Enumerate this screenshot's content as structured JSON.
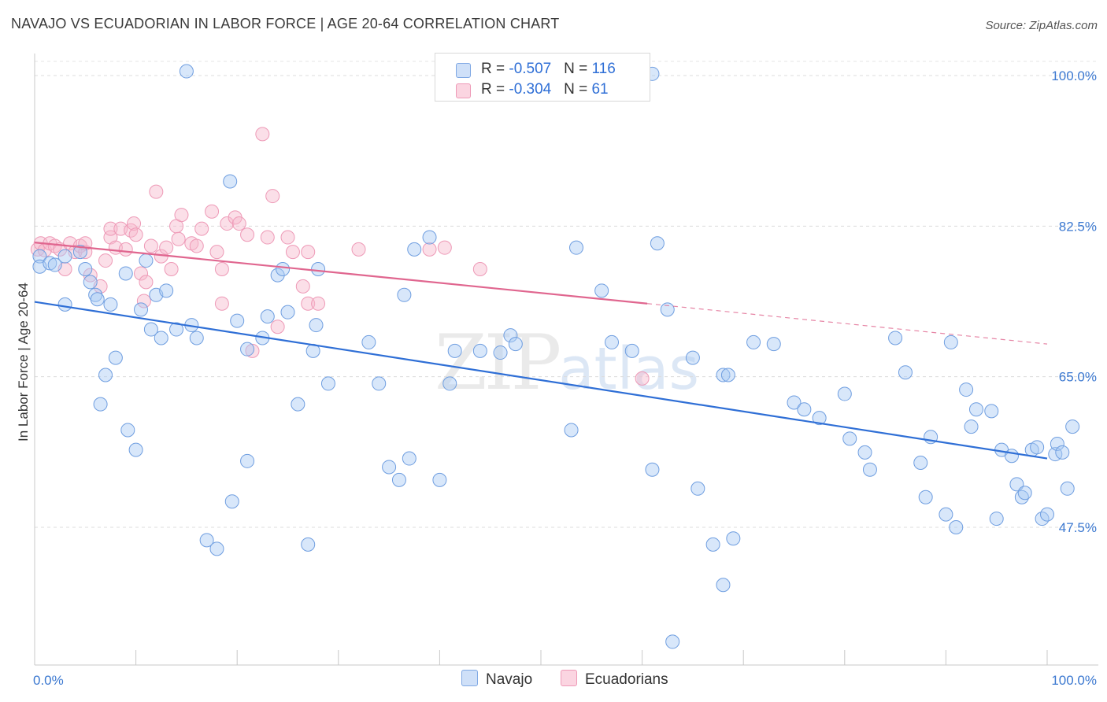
{
  "header": {
    "title": "NAVAJO VS ECUADORIAN IN LABOR FORCE | AGE 20-64 CORRELATION CHART",
    "source": "Source: ZipAtlas.com"
  },
  "legend": {
    "rows": [
      {
        "r_label": "R = ",
        "r_value": "-0.507",
        "n_label": "N = ",
        "n_value": "116",
        "color": "#a9c9f3"
      },
      {
        "r_label": "R = ",
        "r_value": "-0.304",
        "n_label": "N = ",
        "n_value": "61",
        "color": "#f6b8cc"
      }
    ],
    "bottom": [
      {
        "label": "Navajo",
        "color": "#a9c9f3"
      },
      {
        "label": "Ecuadorians",
        "color": "#f6b8cc"
      }
    ]
  },
  "watermark": {
    "zip": "ZIP",
    "atlas": "atlas"
  },
  "chart_data": {
    "type": "scatter",
    "title": "NAVAJO VS ECUADORIAN IN LABOR FORCE | AGE 20-64 CORRELATION CHART",
    "xlabel": "",
    "ylabel": "In Labor Force | Age 20-64",
    "xlim": [
      0,
      100
    ],
    "ylim": [
      32,
      102
    ],
    "x_tick_labels": [
      "0.0%",
      "100.0%"
    ],
    "y_ticks": [
      100.0,
      82.5,
      65.0,
      47.5
    ],
    "y_tick_labels": [
      "100.0%",
      "82.5%",
      "65.0%",
      "47.5%"
    ],
    "grid": true,
    "legend_position": "top-center",
    "colors": {
      "navajo_fill": "#a9c9f3",
      "navajo_line": "#2f6fd6",
      "ecuador_fill": "#f6b8cc",
      "ecuador_line": "#e0668f"
    },
    "series": [
      {
        "name": "Navajo",
        "trend": {
          "x0": 0,
          "y0": 73.7,
          "x1": 100,
          "y1": 55.5
        },
        "points": [
          [
            15,
            100.5
          ],
          [
            54,
            100.5
          ],
          [
            61,
            100.2
          ],
          [
            0.5,
            79
          ],
          [
            0.5,
            77.8
          ],
          [
            1.5,
            78.2
          ],
          [
            2,
            78
          ],
          [
            3,
            79
          ],
          [
            5,
            77.5
          ],
          [
            4.5,
            79.5
          ],
          [
            5.5,
            76
          ],
          [
            6,
            74.5
          ],
          [
            6.2,
            74
          ],
          [
            3,
            73.4
          ],
          [
            7.5,
            73.4
          ],
          [
            9,
            77
          ],
          [
            10.5,
            72.8
          ],
          [
            11,
            78.5
          ],
          [
            12,
            74.5
          ],
          [
            13,
            75
          ],
          [
            11.5,
            70.5
          ],
          [
            12.5,
            69.5
          ],
          [
            14,
            70.5
          ],
          [
            15.5,
            71
          ],
          [
            16,
            69.5
          ],
          [
            8,
            67.2
          ],
          [
            7,
            65.2
          ],
          [
            6.5,
            61.8
          ],
          [
            9.2,
            58.8
          ],
          [
            10,
            56.5
          ],
          [
            19.3,
            87.7
          ],
          [
            20,
            71.5
          ],
          [
            21,
            68.2
          ],
          [
            22.5,
            69.5
          ],
          [
            23,
            72
          ],
          [
            24,
            76.8
          ],
          [
            24.5,
            77.5
          ],
          [
            25,
            72.5
          ],
          [
            26,
            61.8
          ],
          [
            27.5,
            68
          ],
          [
            27.8,
            71
          ],
          [
            28,
            77.5
          ],
          [
            29,
            64.2
          ],
          [
            21,
            55.2
          ],
          [
            19.5,
            50.5
          ],
          [
            17,
            46
          ],
          [
            18,
            45
          ],
          [
            27,
            45.5
          ],
          [
            33,
            69
          ],
          [
            34,
            64.2
          ],
          [
            35,
            54.5
          ],
          [
            36,
            53
          ],
          [
            37,
            55.5
          ],
          [
            36.5,
            74.5
          ],
          [
            37.5,
            79.8
          ],
          [
            39,
            81.2
          ],
          [
            40,
            53
          ],
          [
            41,
            64.2
          ],
          [
            41.5,
            68
          ],
          [
            44,
            68
          ],
          [
            46,
            67.8
          ],
          [
            47,
            69.8
          ],
          [
            47.5,
            68.8
          ],
          [
            53.5,
            80
          ],
          [
            53,
            58.8
          ],
          [
            56,
            75
          ],
          [
            57,
            69
          ],
          [
            59,
            68
          ],
          [
            61.5,
            80.5
          ],
          [
            61,
            54.2
          ],
          [
            62.5,
            72.8
          ],
          [
            65,
            67.2
          ],
          [
            65.5,
            52
          ],
          [
            67,
            45.5
          ],
          [
            68,
            65.2
          ],
          [
            68.5,
            65.2
          ],
          [
            69,
            46.2
          ],
          [
            68,
            40.8
          ],
          [
            63,
            34.2
          ],
          [
            71,
            69
          ],
          [
            73,
            68.8
          ],
          [
            75,
            62
          ],
          [
            76,
            61.2
          ],
          [
            77.5,
            60.2
          ],
          [
            80,
            63
          ],
          [
            80.5,
            57.8
          ],
          [
            82,
            56.2
          ],
          [
            82.5,
            54.2
          ],
          [
            85,
            69.5
          ],
          [
            86,
            65.5
          ],
          [
            87.5,
            55
          ],
          [
            88,
            51
          ],
          [
            88.5,
            58
          ],
          [
            90,
            49
          ],
          [
            90.5,
            69
          ],
          [
            91,
            47.5
          ],
          [
            92,
            63.5
          ],
          [
            92.5,
            59.2
          ],
          [
            93,
            61.2
          ],
          [
            94.5,
            61
          ],
          [
            95,
            48.5
          ],
          [
            95.5,
            56.5
          ],
          [
            96.5,
            55.8
          ],
          [
            97.5,
            51
          ],
          [
            97,
            52.5
          ],
          [
            97.8,
            51.5
          ],
          [
            98.5,
            56.5
          ],
          [
            99,
            56.8
          ],
          [
            99.5,
            48.5
          ],
          [
            100,
            49
          ],
          [
            100.8,
            56
          ],
          [
            101,
            57.2
          ],
          [
            101.5,
            56.2
          ],
          [
            102,
            52
          ],
          [
            102.5,
            59.2
          ]
        ]
      },
      {
        "name": "Ecuadorians",
        "trend": {
          "x0": 0,
          "y0": 80.6,
          "x1": 60.5,
          "y1": 73.5,
          "dash_x1": 100,
          "dash_y1": 68.8
        },
        "points": [
          [
            0.3,
            79.8
          ],
          [
            0.6,
            80.5
          ],
          [
            1,
            79.7
          ],
          [
            1.5,
            80.5
          ],
          [
            2,
            80.2
          ],
          [
            2.5,
            79.8
          ],
          [
            3,
            77.5
          ],
          [
            3.5,
            80.5
          ],
          [
            4,
            79.5
          ],
          [
            4.5,
            80.2
          ],
          [
            5,
            79.5
          ],
          [
            5,
            80.5
          ],
          [
            5.5,
            76.8
          ],
          [
            6.5,
            75.5
          ],
          [
            7,
            78.5
          ],
          [
            7.5,
            81.2
          ],
          [
            7.5,
            82.2
          ],
          [
            8,
            80
          ],
          [
            8.5,
            82.2
          ],
          [
            9,
            79.8
          ],
          [
            9.5,
            82
          ],
          [
            9.8,
            82.8
          ],
          [
            10,
            81.5
          ],
          [
            10.5,
            77
          ],
          [
            10.8,
            73.8
          ],
          [
            11,
            76
          ],
          [
            11.5,
            80.2
          ],
          [
            12,
            86.5
          ],
          [
            12.5,
            79
          ],
          [
            13,
            80
          ],
          [
            13.5,
            77.5
          ],
          [
            14,
            82.5
          ],
          [
            14.2,
            81
          ],
          [
            14.5,
            83.8
          ],
          [
            15.5,
            80.5
          ],
          [
            16,
            80.2
          ],
          [
            16.5,
            82.2
          ],
          [
            17.5,
            84.2
          ],
          [
            18,
            79.5
          ],
          [
            18.5,
            77.5
          ],
          [
            18.5,
            73.5
          ],
          [
            19,
            82.8
          ],
          [
            19.8,
            83.5
          ],
          [
            20.2,
            82.8
          ],
          [
            21,
            81.5
          ],
          [
            21.5,
            68
          ],
          [
            22.5,
            93.2
          ],
          [
            23,
            81.2
          ],
          [
            23.5,
            86
          ],
          [
            24,
            70.8
          ],
          [
            25,
            81.2
          ],
          [
            25.5,
            79.5
          ],
          [
            26.5,
            75.5
          ],
          [
            27,
            79.5
          ],
          [
            27,
            73.5
          ],
          [
            28,
            73.5
          ],
          [
            32,
            79.8
          ],
          [
            40.5,
            80
          ],
          [
            39,
            79.8
          ],
          [
            44,
            77.5
          ],
          [
            60,
            64.8
          ]
        ]
      }
    ]
  }
}
